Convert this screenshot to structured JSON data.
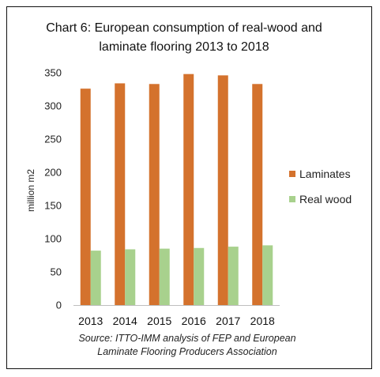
{
  "chart_data": {
    "type": "bar",
    "title_lines": [
      "Chart 6: European consumption of real-wood and",
      "laminate flooring 2013 to 2018"
    ],
    "categories": [
      "2013",
      "2014",
      "2015",
      "2016",
      "2017",
      "2018"
    ],
    "series": [
      {
        "name": "Laminates",
        "color": "#D4722D",
        "values": [
          326,
          334,
          333,
          348,
          346,
          333
        ]
      },
      {
        "name": "Real wood",
        "color": "#A8D18D",
        "values": [
          82,
          84,
          85,
          86,
          88,
          90
        ]
      }
    ],
    "xlabel": "",
    "ylabel": "million m2",
    "ylim": [
      0,
      350
    ],
    "yticks": [
      0,
      50,
      100,
      150,
      200,
      250,
      300,
      350
    ],
    "grid": false,
    "legend_position": "right",
    "source_lines": [
      "Source: ITTO-IMM analysis of FEP and European",
      "Laminate Flooring Producers Association"
    ]
  }
}
